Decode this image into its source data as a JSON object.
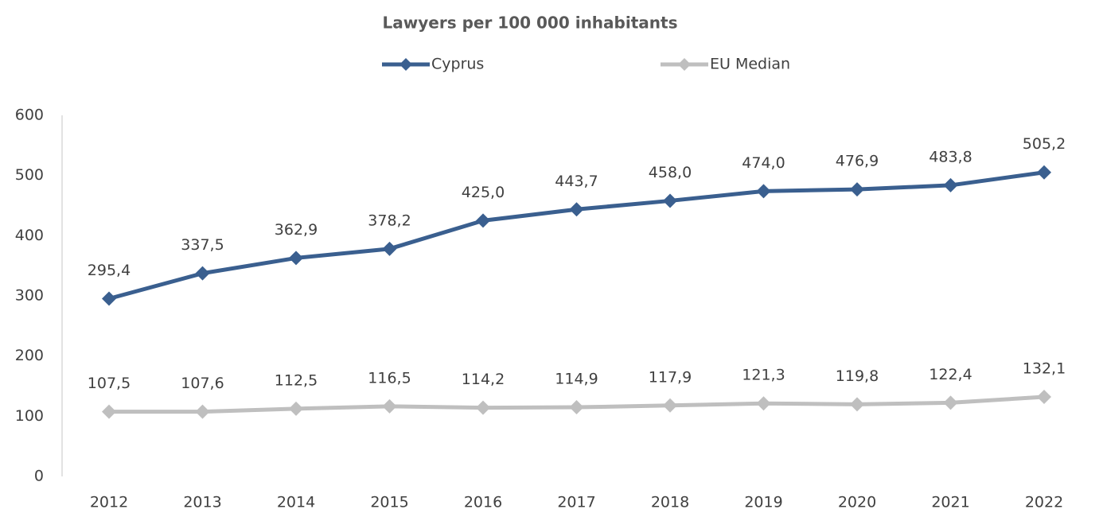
{
  "chart_data": {
    "type": "line",
    "title": "Lawyers per 100 000 inhabitants",
    "categories": [
      "2012",
      "2013",
      "2014",
      "2015",
      "2016",
      "2017",
      "2018",
      "2019",
      "2020",
      "2021",
      "2022"
    ],
    "series": [
      {
        "name": "Cyprus",
        "color": "#3a5f8f",
        "values": [
          295.4,
          337.5,
          362.9,
          378.2,
          425.0,
          443.7,
          458.0,
          474.0,
          476.9,
          483.8,
          505.2
        ],
        "value_labels": [
          "295,4",
          "337,5",
          "362,9",
          "378,2",
          "425,0",
          "443,7",
          "458,0",
          "474,0",
          "476,9",
          "483,8",
          "505,2"
        ]
      },
      {
        "name": "EU Median",
        "color": "#bfbfbf",
        "values": [
          107.5,
          107.6,
          112.5,
          116.5,
          114.2,
          114.9,
          117.9,
          121.3,
          119.8,
          122.4,
          132.1
        ],
        "value_labels": [
          "107,5",
          "107,6",
          "112,5",
          "116,5",
          "114,2",
          "114,9",
          "117,9",
          "121,3",
          "119,8",
          "122,4",
          "132,1"
        ]
      }
    ],
    "ylim": [
      0,
      600
    ],
    "yticks": [
      0,
      100,
      200,
      300,
      400,
      500,
      600
    ],
    "legend": "top"
  }
}
